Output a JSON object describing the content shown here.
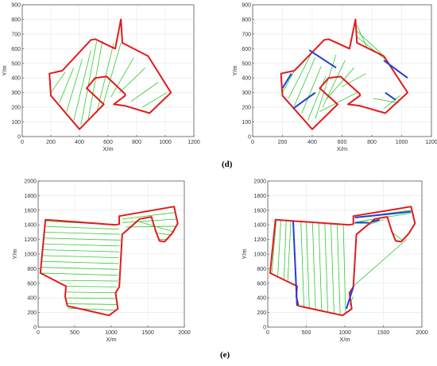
{
  "captions": {
    "row1": "(d)",
    "row2": "(e)"
  },
  "colors": {
    "boundary": "#e31a1c",
    "sweep": "#2ecc2e",
    "transfer": "#1f3fd6",
    "axes": "#444444",
    "grid": "#e6e6e6"
  },
  "chart_data": [
    {
      "type": "line",
      "xlabel": "X/m",
      "ylabel": "Y/m",
      "xlim": [
        0,
        1200
      ],
      "ylim": [
        0,
        900
      ],
      "xticks": [
        0,
        200,
        400,
        600,
        800,
        1000,
        1200
      ],
      "yticks": [
        0,
        100,
        200,
        300,
        400,
        500,
        600,
        700,
        800,
        900
      ],
      "grid": true,
      "boundary": [
        [
          190,
          430
        ],
        [
          200,
          280
        ],
        [
          400,
          50
        ],
        [
          570,
          220
        ],
        [
          450,
          330
        ],
        [
          510,
          400
        ],
        [
          590,
          410
        ],
        [
          720,
          290
        ],
        [
          720,
          280
        ],
        [
          640,
          220
        ],
        [
          720,
          210
        ],
        [
          890,
          160
        ],
        [
          1040,
          300
        ],
        [
          880,
          550
        ],
        [
          700,
          640
        ],
        [
          690,
          800
        ],
        [
          650,
          600
        ],
        [
          510,
          665
        ],
        [
          480,
          660
        ],
        [
          280,
          450
        ]
      ],
      "sweeps": [
        [
          [
            200,
            300
          ],
          [
            300,
            440
          ]
        ],
        [
          [
            260,
            230
          ],
          [
            360,
            470
          ]
        ],
        [
          [
            310,
            170
          ],
          [
            420,
            530
          ]
        ],
        [
          [
            360,
            110
          ],
          [
            480,
            590
          ]
        ],
        [
          [
            410,
            80
          ],
          [
            520,
            650
          ]
        ],
        [
          [
            460,
            110
          ],
          [
            560,
            650
          ]
        ],
        [
          [
            520,
            160
          ],
          [
            640,
            640
          ]
        ],
        [
          [
            560,
            200
          ],
          [
            690,
            640
          ]
        ],
        [
          [
            620,
            270
          ],
          [
            780,
            540
          ]
        ],
        [
          [
            680,
            300
          ],
          [
            860,
            470
          ]
        ],
        [
          [
            760,
            240
          ],
          [
            950,
            370
          ]
        ],
        [
          [
            840,
            200
          ],
          [
            1010,
            300
          ]
        ]
      ],
      "transfers": []
    },
    {
      "type": "line",
      "xlabel": "X/m",
      "ylabel": "Y/m",
      "xlim": [
        0,
        1200
      ],
      "ylim": [
        0,
        900
      ],
      "xticks": [
        0,
        200,
        400,
        600,
        800,
        1000,
        1200
      ],
      "yticks": [
        0,
        100,
        200,
        300,
        400,
        500,
        600,
        700,
        800,
        900
      ],
      "grid": true,
      "boundary": [
        [
          190,
          430
        ],
        [
          200,
          280
        ],
        [
          400,
          50
        ],
        [
          570,
          220
        ],
        [
          450,
          330
        ],
        [
          510,
          400
        ],
        [
          590,
          410
        ],
        [
          720,
          290
        ],
        [
          720,
          280
        ],
        [
          640,
          220
        ],
        [
          720,
          210
        ],
        [
          890,
          160
        ],
        [
          1040,
          300
        ],
        [
          880,
          550
        ],
        [
          700,
          640
        ],
        [
          690,
          800
        ],
        [
          650,
          600
        ],
        [
          510,
          665
        ],
        [
          480,
          660
        ],
        [
          280,
          450
        ]
      ],
      "sweeps": [
        [
          [
            200,
            300
          ],
          [
            280,
            450
          ]
        ],
        [
          [
            240,
            260
          ],
          [
            390,
            560
          ]
        ],
        [
          [
            280,
            210
          ],
          [
            420,
            540
          ]
        ],
        [
          [
            330,
            160
          ],
          [
            460,
            480
          ]
        ],
        [
          [
            370,
            110
          ],
          [
            490,
            410
          ]
        ],
        [
          [
            420,
            120
          ],
          [
            560,
            560
          ]
        ],
        [
          [
            470,
            200
          ],
          [
            620,
            520
          ]
        ],
        [
          [
            500,
            260
          ],
          [
            680,
            470
          ]
        ],
        [
          [
            600,
            340
          ],
          [
            760,
            430
          ]
        ],
        [
          [
            700,
            680
          ],
          [
            900,
            520
          ]
        ],
        [
          [
            700,
            720
          ],
          [
            880,
            550
          ]
        ],
        [
          [
            700,
            760
          ],
          [
            770,
            600
          ]
        ],
        [
          [
            450,
            170
          ],
          [
            700,
            300
          ]
        ],
        [
          [
            810,
            260
          ],
          [
            980,
            230
          ]
        ],
        [
          [
            880,
            190
          ],
          [
            990,
            280
          ]
        ]
      ],
      "transfers": [
        [
          [
            200,
            330
          ],
          [
            260,
            430
          ]
        ],
        [
          [
            270,
            190
          ],
          [
            420,
            300
          ]
        ],
        [
          [
            380,
            590
          ],
          [
            560,
            470
          ]
        ],
        [
          [
            880,
            520
          ],
          [
            1040,
            400
          ]
        ],
        [
          [
            890,
            300
          ],
          [
            960,
            250
          ]
        ]
      ]
    },
    {
      "type": "line",
      "xlabel": "X/m",
      "ylabel": "Y/m",
      "xlim": [
        0,
        2000
      ],
      "ylim": [
        0,
        2000
      ],
      "xticks": [
        0,
        500,
        1000,
        1500,
        2000
      ],
      "yticks": [
        0,
        200,
        400,
        600,
        800,
        1000,
        1200,
        1400,
        1600,
        1800,
        2000
      ],
      "grid": true,
      "boundary": [
        [
          100,
          1470
        ],
        [
          1060,
          1400
        ],
        [
          1110,
          1410
        ],
        [
          1110,
          1520
        ],
        [
          1860,
          1650
        ],
        [
          1910,
          1420
        ],
        [
          1830,
          1280
        ],
        [
          1730,
          1170
        ],
        [
          1660,
          1180
        ],
        [
          1610,
          1310
        ],
        [
          1550,
          1510
        ],
        [
          1390,
          1480
        ],
        [
          1150,
          1270
        ],
        [
          1110,
          550
        ],
        [
          1060,
          470
        ],
        [
          1090,
          250
        ],
        [
          970,
          160
        ],
        [
          400,
          290
        ],
        [
          370,
          420
        ],
        [
          380,
          560
        ],
        [
          30,
          740
        ]
      ],
      "sweeps": [
        [
          [
            100,
            1450
          ],
          [
            1080,
            1400
          ]
        ],
        [
          [
            90,
            1380
          ],
          [
            1110,
            1340
          ]
        ],
        [
          [
            80,
            1300
          ],
          [
            1130,
            1270
          ]
        ],
        [
          [
            70,
            1220
          ],
          [
            1130,
            1190
          ]
        ],
        [
          [
            60,
            1140
          ],
          [
            1120,
            1110
          ]
        ],
        [
          [
            55,
            1060
          ],
          [
            1110,
            1030
          ]
        ],
        [
          [
            50,
            980
          ],
          [
            1100,
            950
          ]
        ],
        [
          [
            45,
            900
          ],
          [
            1100,
            870
          ]
        ],
        [
          [
            40,
            820
          ],
          [
            1090,
            790
          ]
        ],
        [
          [
            35,
            740
          ],
          [
            1090,
            710
          ]
        ],
        [
          [
            300,
            640
          ],
          [
            1090,
            630
          ]
        ],
        [
          [
            370,
            560
          ],
          [
            1080,
            550
          ]
        ],
        [
          [
            370,
            480
          ],
          [
            1070,
            470
          ]
        ],
        [
          [
            380,
            400
          ],
          [
            1080,
            390
          ]
        ],
        [
          [
            390,
            320
          ],
          [
            1090,
            310
          ]
        ],
        [
          [
            400,
            260
          ],
          [
            1080,
            230
          ]
        ],
        [
          [
            1150,
            1480
          ],
          [
            1880,
            1570
          ]
        ],
        [
          [
            1150,
            1430
          ],
          [
            1900,
            1480
          ]
        ],
        [
          [
            1200,
            1370
          ],
          [
            1880,
            1380
          ]
        ],
        [
          [
            1390,
            1440
          ],
          [
            1870,
            1300
          ]
        ],
        [
          [
            1610,
            1290
          ],
          [
            1820,
            1260
          ]
        ],
        [
          [
            1660,
            1200
          ],
          [
            1780,
            1200
          ]
        ]
      ],
      "transfers": []
    },
    {
      "type": "line",
      "xlabel": "X/m",
      "ylabel": "Y/m",
      "xlim": [
        0,
        2000
      ],
      "ylim": [
        0,
        2000
      ],
      "xticks": [
        0,
        500,
        1000,
        1500,
        2000
      ],
      "yticks": [
        0,
        200,
        400,
        600,
        800,
        1000,
        1200,
        1400,
        1600,
        1800,
        2000
      ],
      "grid": true,
      "boundary": [
        [
          100,
          1470
        ],
        [
          1060,
          1400
        ],
        [
          1110,
          1410
        ],
        [
          1110,
          1520
        ],
        [
          1860,
          1650
        ],
        [
          1910,
          1420
        ],
        [
          1830,
          1280
        ],
        [
          1730,
          1170
        ],
        [
          1660,
          1180
        ],
        [
          1610,
          1310
        ],
        [
          1550,
          1510
        ],
        [
          1390,
          1480
        ],
        [
          1150,
          1270
        ],
        [
          1110,
          550
        ],
        [
          1060,
          470
        ],
        [
          1090,
          250
        ],
        [
          970,
          160
        ],
        [
          400,
          290
        ],
        [
          370,
          420
        ],
        [
          380,
          560
        ],
        [
          30,
          740
        ]
      ],
      "sweeps": [
        [
          [
            110,
            1450
          ],
          [
            50,
            720
          ]
        ],
        [
          [
            170,
            1460
          ],
          [
            130,
            700
          ]
        ],
        [
          [
            240,
            1460
          ],
          [
            210,
            660
          ]
        ],
        [
          [
            300,
            1460
          ],
          [
            260,
            640
          ]
        ],
        [
          [
            430,
            1450
          ],
          [
            470,
            260
          ]
        ],
        [
          [
            500,
            1440
          ],
          [
            540,
            250
          ]
        ],
        [
          [
            580,
            1440
          ],
          [
            620,
            230
          ]
        ],
        [
          [
            660,
            1430
          ],
          [
            700,
            210
          ]
        ],
        [
          [
            740,
            1420
          ],
          [
            780,
            200
          ]
        ],
        [
          [
            820,
            1420
          ],
          [
            860,
            180
          ]
        ],
        [
          [
            900,
            1410
          ],
          [
            940,
            170
          ]
        ],
        [
          [
            980,
            1400
          ],
          [
            1010,
            190
          ]
        ],
        [
          [
            1110,
            420
          ],
          [
            1060,
            300
          ]
        ],
        [
          [
            1150,
            1500
          ],
          [
            1860,
            1600
          ]
        ],
        [
          [
            1150,
            1440
          ],
          [
            1860,
            1560
          ]
        ],
        [
          [
            1300,
            1400
          ],
          [
            1500,
            1470
          ]
        ],
        [
          [
            1610,
            1300
          ],
          [
            1760,
            1180
          ]
        ],
        [
          [
            1100,
            550
          ],
          [
            1800,
            1200
          ]
        ],
        [
          [
            1120,
            1420
          ],
          [
            1320,
            1470
          ]
        ]
      ],
      "transfers": [
        [
          [
            330,
            1450
          ],
          [
            380,
            290
          ]
        ],
        [
          [
            1020,
            250
          ],
          [
            1110,
            550
          ]
        ],
        [
          [
            1130,
            1430
          ],
          [
            1310,
            1430
          ]
        ],
        [
          [
            1130,
            1500
          ],
          [
            1860,
            1580
          ]
        ],
        [
          [
            1350,
            1440
          ],
          [
            1450,
            1470
          ]
        ]
      ]
    }
  ]
}
